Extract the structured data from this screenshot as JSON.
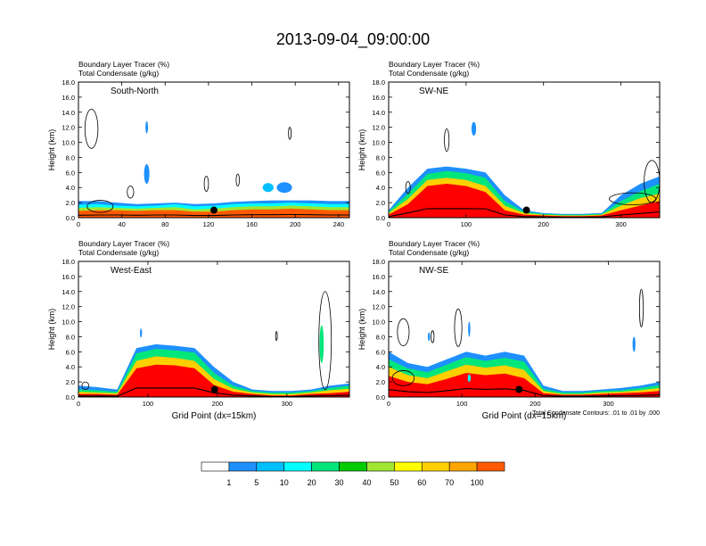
{
  "title": "2013-09-04_09:00:00",
  "colors": {
    "frame": "#000000",
    "contour": "#000000",
    "bg": "#ffffff",
    "terrain_dot": "#000000"
  },
  "colorbar": {
    "levels": [
      "1",
      "5",
      "10",
      "20",
      "30",
      "40",
      "50",
      "60",
      "70",
      "100"
    ],
    "colors": [
      "#ffffff",
      "#1e90ff",
      "#00bfff",
      "#00ffff",
      "#00e67a",
      "#00cc00",
      "#a0e632",
      "#ffff00",
      "#ffd000",
      "#ffa500",
      "#ff5a00",
      "#ff0000"
    ]
  },
  "footnote": "Total Condensate Contours: .01 to .01 by .000",
  "chart_data": [
    {
      "type": "contour",
      "label": "South-North",
      "subtitle1": "Boundary Layer Tracer   (%)",
      "subtitle2": "Total Condensate   (g/kg)",
      "ylabel": "Height (km)",
      "xlabel": "",
      "xlim": [
        0,
        250
      ],
      "ylim": [
        0,
        18
      ],
      "xticks": [
        "0",
        "40",
        "80",
        "120",
        "160",
        "200",
        "240"
      ],
      "xtick_values": [
        0,
        40,
        80,
        120,
        160,
        200,
        240
      ],
      "yticks": [
        "0.0",
        "2.0",
        "4.0",
        "6.0",
        "8.0",
        "10.0",
        "12.0",
        "14.0",
        "16.0",
        "18.0"
      ],
      "ytick_values": [
        0,
        2,
        4,
        6,
        8,
        10,
        12,
        14,
        16,
        18
      ],
      "marker": {
        "x": 125,
        "y": 1.0
      },
      "bands": [
        {
          "x0": 0,
          "x1": 250,
          "level": 1,
          "top": [
            2.2,
            2.2,
            2.0,
            1.8,
            1.9,
            2.0,
            1.8,
            1.9,
            2.1,
            2.2,
            2.3,
            2.3,
            2.3,
            2.2,
            2.2
          ]
        },
        {
          "x0": 0,
          "x1": 250,
          "level": 3,
          "top": [
            1.7,
            1.8,
            1.6,
            1.5,
            1.6,
            1.8,
            1.5,
            1.6,
            1.8,
            1.9,
            1.9,
            2.0,
            1.9,
            1.8,
            1.8
          ]
        },
        {
          "x0": 0,
          "x1": 250,
          "level": 6,
          "top": [
            1.3,
            1.4,
            1.3,
            1.2,
            1.3,
            1.4,
            1.1,
            1.2,
            1.4,
            1.5,
            1.5,
            1.6,
            1.5,
            1.4,
            1.4
          ]
        },
        {
          "x0": 0,
          "x1": 250,
          "level": 10,
          "top": [
            0.9,
            1.0,
            1.0,
            0.9,
            1.0,
            1.0,
            0.8,
            0.8,
            1.0,
            1.1,
            1.1,
            1.2,
            1.1,
            1.0,
            1.0
          ]
        }
      ],
      "blobs": [
        {
          "x": 63,
          "y": 5.8,
          "rx": 2.5,
          "ry": 1.3,
          "level": 1
        },
        {
          "x": 63,
          "y": 12.0,
          "rx": 1.2,
          "ry": 0.8,
          "level": 1
        },
        {
          "x": 190,
          "y": 4.0,
          "rx": 7,
          "ry": 0.7,
          "level": 1
        },
        {
          "x": 175,
          "y": 4.0,
          "rx": 5,
          "ry": 0.6,
          "level": 2
        }
      ],
      "contours": [
        {
          "x": 12,
          "y": 11.8,
          "rx": 6,
          "ry": 2.6
        },
        {
          "x": 118,
          "y": 4.5,
          "rx": 2,
          "ry": 1.0
        },
        {
          "x": 147,
          "y": 5.0,
          "rx": 1.5,
          "ry": 0.8
        },
        {
          "x": 195,
          "y": 11.2,
          "rx": 1.2,
          "ry": 0.8
        },
        {
          "x": 48,
          "y": 3.4,
          "rx": 3,
          "ry": 0.8
        },
        {
          "x": 20,
          "y": 1.5,
          "rx": 12,
          "ry": 0.8
        }
      ]
    },
    {
      "type": "contour",
      "label": "SW-NE",
      "subtitle1": "Boundary Layer Tracer   (%)",
      "subtitle2": "Total Condensate   (g/kg)",
      "ylabel": "Height (km)",
      "xlabel": "",
      "xlim": [
        0,
        350
      ],
      "ylim": [
        0,
        18
      ],
      "xticks": [
        "0",
        "100",
        "200",
        "300"
      ],
      "xtick_values": [
        0,
        100,
        200,
        300
      ],
      "yticks": [
        "0.0",
        "2.0",
        "4.0",
        "6.0",
        "8.0",
        "10.0",
        "12.0",
        "14.0",
        "16.0",
        "18.0"
      ],
      "ytick_values": [
        0,
        2,
        4,
        6,
        8,
        10,
        12,
        14,
        16,
        18
      ],
      "marker": {
        "x": 178,
        "y": 1.0
      },
      "bands": [
        {
          "x0": 0,
          "x1": 350,
          "level": 1,
          "top": [
            1.0,
            4.0,
            6.5,
            6.8,
            6.5,
            6.0,
            3.0,
            1.0,
            0.6,
            0.5,
            0.5,
            0.6,
            3.0,
            4.5,
            5.5
          ]
        },
        {
          "x0": 0,
          "x1": 350,
          "level": 4,
          "top": [
            0.8,
            3.2,
            5.8,
            6.2,
            5.9,
            5.3,
            2.2,
            0.8,
            0.5,
            0.4,
            0.4,
            0.5,
            2.2,
            3.5,
            4.5
          ]
        },
        {
          "x0": 0,
          "x1": 350,
          "level": 8,
          "top": [
            0.6,
            2.5,
            5.0,
            5.3,
            5.0,
            4.2,
            1.6,
            0.6,
            0.4,
            0.3,
            0.3,
            0.4,
            1.6,
            2.6,
            3.2
          ]
        },
        {
          "x0": 0,
          "x1": 350,
          "level": 11,
          "top": [
            0.4,
            1.8,
            4.2,
            4.5,
            4.2,
            3.4,
            1.0,
            0.4,
            0.3,
            0.2,
            0.2,
            0.3,
            1.0,
            1.6,
            2.2
          ]
        }
      ],
      "blobs": [
        {
          "x": 110,
          "y": 11.8,
          "rx": 3,
          "ry": 0.9,
          "level": 1
        }
      ],
      "contours": [
        {
          "x": 75,
          "y": 10.3,
          "rx": 3,
          "ry": 1.5
        },
        {
          "x": 340,
          "y": 4.8,
          "rx": 10,
          "ry": 2.8
        },
        {
          "x": 315,
          "y": 2.5,
          "rx": 30,
          "ry": 0.8
        },
        {
          "x": 25,
          "y": 4.0,
          "rx": 3,
          "ry": 0.8
        }
      ]
    },
    {
      "type": "contour",
      "label": "West-East",
      "subtitle1": "Boundary Layer Tracer   (%)",
      "subtitle2": "Total Condensate   (g/kg)",
      "ylabel": "Height (km)",
      "xlabel": "Grid Point (dx=15km)",
      "xlim": [
        0,
        390
      ],
      "ylim": [
        0,
        18
      ],
      "xticks": [
        "0",
        "100",
        "200",
        "300"
      ],
      "xtick_values": [
        0,
        100,
        200,
        300
      ],
      "yticks": [
        "0.0",
        "2.0",
        "4.0",
        "6.0",
        "8.0",
        "10.0",
        "12.0",
        "14.0",
        "16.0",
        "18.0"
      ],
      "ytick_values": [
        0,
        2,
        4,
        6,
        8,
        10,
        12,
        14,
        16,
        18
      ],
      "marker": {
        "x": 196,
        "y": 1.0
      },
      "bands": [
        {
          "x0": 0,
          "x1": 390,
          "level": 1,
          "top": [
            1.5,
            1.3,
            1.0,
            6.5,
            7.0,
            6.8,
            6.5,
            4.0,
            2.0,
            1.0,
            0.8,
            0.8,
            1.0,
            1.5,
            1.8
          ]
        },
        {
          "x0": 0,
          "x1": 390,
          "level": 4,
          "top": [
            1.0,
            0.9,
            0.7,
            5.8,
            6.4,
            6.2,
            5.9,
            3.2,
            1.5,
            0.8,
            0.6,
            0.6,
            0.8,
            1.2,
            1.5
          ]
        },
        {
          "x0": 0,
          "x1": 390,
          "level": 8,
          "top": [
            0.7,
            0.6,
            0.5,
            4.8,
            5.4,
            5.2,
            4.8,
            2.4,
            1.1,
            0.6,
            0.4,
            0.4,
            0.6,
            0.9,
            1.1
          ]
        },
        {
          "x0": 0,
          "x1": 390,
          "level": 11,
          "top": [
            0.4,
            0.4,
            0.3,
            3.8,
            4.3,
            4.2,
            3.8,
            1.6,
            0.7,
            0.4,
            0.2,
            0.2,
            0.4,
            0.5,
            0.7
          ]
        }
      ],
      "blobs": [
        {
          "x": 350,
          "y": 7.0,
          "rx": 3,
          "ry": 2.5,
          "level": 4
        },
        {
          "x": 90,
          "y": 8.5,
          "rx": 1.5,
          "ry": 0.6,
          "level": 1
        }
      ],
      "contours": [
        {
          "x": 355,
          "y": 7.5,
          "rx": 9,
          "ry": 6.5
        },
        {
          "x": 285,
          "y": 8.1,
          "rx": 1.2,
          "ry": 0.6
        },
        {
          "x": 10,
          "y": 1.5,
          "rx": 5,
          "ry": 0.5
        }
      ]
    },
    {
      "type": "contour",
      "label": "NW-SE",
      "subtitle1": "Boundary Layer Tracer   (%)",
      "subtitle2": "Total Condensate   (g/kg)",
      "ylabel": "Height (km)",
      "xlabel": "Grid Point (dx=15km)",
      "xlim": [
        0,
        370
      ],
      "ylim": [
        0,
        18
      ],
      "xticks": [
        "0",
        "100",
        "200",
        "300"
      ],
      "xtick_values": [
        0,
        100,
        200,
        300
      ],
      "yticks": [
        "0.0",
        "2.0",
        "4.0",
        "6.0",
        "8.0",
        "10.0",
        "12.0",
        "14.0",
        "16.0",
        "18.0"
      ],
      "ytick_values": [
        0,
        2,
        4,
        6,
        8,
        10,
        12,
        14,
        16,
        18
      ],
      "marker": {
        "x": 178,
        "y": 1.0
      },
      "bands": [
        {
          "x0": 0,
          "x1": 370,
          "level": 1,
          "top": [
            6.0,
            4.5,
            4.0,
            5.0,
            6.0,
            5.5,
            6.0,
            5.5,
            1.5,
            0.8,
            0.8,
            1.0,
            1.2,
            1.5,
            2.0
          ]
        },
        {
          "x0": 0,
          "x1": 370,
          "level": 4,
          "top": [
            5.0,
            3.8,
            3.3,
            4.3,
            5.3,
            4.8,
            5.2,
            4.7,
            1.1,
            0.6,
            0.6,
            0.8,
            0.9,
            1.2,
            1.6
          ]
        },
        {
          "x0": 0,
          "x1": 370,
          "level": 8,
          "top": [
            4.0,
            2.9,
            2.5,
            3.4,
            4.3,
            3.9,
            4.2,
            3.6,
            0.8,
            0.4,
            0.4,
            0.6,
            0.7,
            0.9,
            1.2
          ]
        },
        {
          "x0": 0,
          "x1": 370,
          "level": 11,
          "top": [
            2.8,
            2.0,
            1.7,
            2.4,
            3.2,
            2.9,
            3.1,
            2.5,
            0.5,
            0.3,
            0.3,
            0.4,
            0.5,
            0.6,
            0.8
          ]
        }
      ],
      "blobs": [
        {
          "x": 110,
          "y": 9.0,
          "rx": 1.5,
          "ry": 1.0,
          "level": 1
        },
        {
          "x": 55,
          "y": 8.0,
          "rx": 1.5,
          "ry": 0.6,
          "level": 1
        },
        {
          "x": 110,
          "y": 2.5,
          "rx": 2,
          "ry": 0.5,
          "level": 3
        },
        {
          "x": 335,
          "y": 7.0,
          "rx": 2,
          "ry": 1.0,
          "level": 1
        }
      ],
      "contours": [
        {
          "x": 20,
          "y": 8.6,
          "rx": 8,
          "ry": 1.8
        },
        {
          "x": 95,
          "y": 9.2,
          "rx": 5,
          "ry": 2.5
        },
        {
          "x": 60,
          "y": 8.0,
          "rx": 2,
          "ry": 0.8
        },
        {
          "x": 345,
          "y": 11.8,
          "rx": 2.5,
          "ry": 2.5
        },
        {
          "x": 20,
          "y": 2.5,
          "rx": 15,
          "ry": 1.0
        }
      ]
    }
  ]
}
